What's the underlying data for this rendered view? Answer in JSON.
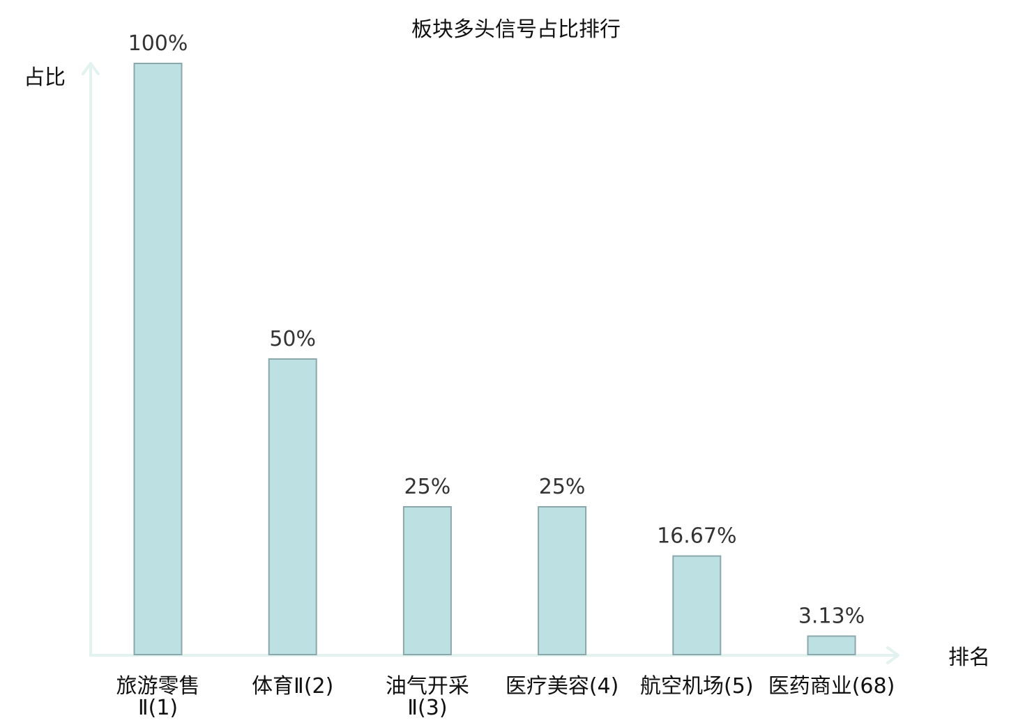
{
  "chart_data": {
    "type": "bar",
    "title": "板块多头信号占比排行",
    "ylabel": "占比",
    "xlabel": "排名",
    "ylim": [
      0,
      100
    ],
    "grid": false,
    "highlight_color": "#e0201c",
    "bar_color": "#bde1e3",
    "categories": [
      {
        "line1": "旅游零售",
        "line2": "Ⅱ(1)",
        "highlight": false
      },
      {
        "line1": "体育Ⅱ(2)",
        "line2": "",
        "highlight": false
      },
      {
        "line1": "油气开采",
        "line2": "Ⅱ(3)",
        "highlight": false
      },
      {
        "line1": "医疗美容(4)",
        "line2": "",
        "highlight": false
      },
      {
        "line1": "航空机场(5)",
        "line2": "",
        "highlight": false
      },
      {
        "line1": "医药商业(68)",
        "line2": "",
        "highlight": true
      }
    ],
    "values": [
      100,
      50,
      25,
      25,
      16.67,
      3.13
    ],
    "value_labels": [
      "100%",
      "50%",
      "25%",
      "25%",
      "16.67%",
      "3.13%"
    ]
  }
}
